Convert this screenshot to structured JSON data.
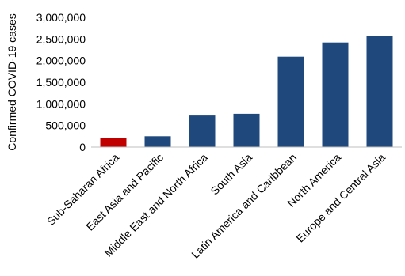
{
  "chart_data": {
    "type": "bar",
    "title": "",
    "xlabel": "",
    "ylabel": "Confirmed COVID-19 cases",
    "categories": [
      "Sub-Saharan Africa",
      "East Asia and Pacific",
      "Middle East and North Africa",
      "South Asia",
      "Latin America and Caribbean",
      "North America",
      "Europe and Central Asia"
    ],
    "values": [
      220000,
      250000,
      730000,
      770000,
      2090000,
      2420000,
      2570000
    ],
    "bar_colors": [
      "#C00000",
      "#1F497D",
      "#1F497D",
      "#1F497D",
      "#1F497D",
      "#1F497D",
      "#1F497D"
    ],
    "ylim": [
      0,
      3000000
    ],
    "yticks": [
      0,
      500000,
      1000000,
      1500000,
      2000000,
      2500000,
      3000000
    ],
    "ytick_labels": [
      "0",
      "500,000",
      "1,000,000",
      "1,500,000",
      "2,000,000",
      "2,500,000",
      "3,000,000"
    ],
    "grid": false,
    "legend": "none"
  }
}
